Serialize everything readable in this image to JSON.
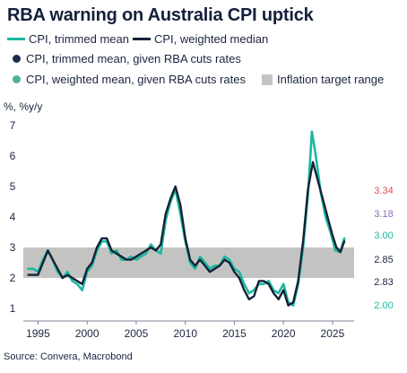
{
  "title": "RBA warning on Australia CPI uptick",
  "legend": [
    {
      "label": "CPI, trimmed mean",
      "kind": "line",
      "color": "#1ab89f"
    },
    {
      "label": "CPI, weighted median",
      "kind": "line",
      "color": "#142238"
    },
    {
      "label": "CPI, trimmed mean, given RBA cuts rates",
      "kind": "dot",
      "color": "#1c2d4e"
    },
    {
      "label": "CPI, weighted mean, given RBA cuts rates",
      "kind": "dot",
      "color": "#4fb39c"
    },
    {
      "label": "Inflation target range",
      "kind": "box",
      "color": "#c3c4c2"
    }
  ],
  "y_unit": "%, %y/y",
  "source": "Source: Convera, Macrobond",
  "colors": {
    "trimmed": "#1ab89f",
    "median": "#142238",
    "band": "#c3c4c2",
    "label_334": "#d9534f",
    "label_318": "#8c6ab5",
    "label_300": "#1ab89f",
    "label_285": "#1a2440",
    "label_283": "#1a2440",
    "label_200": "#1ab89f"
  },
  "chart_data": {
    "type": "line",
    "xlim": [
      1993.5,
      2027.2
    ],
    "ylim": [
      1,
      7
    ],
    "x_ticks": [
      1995,
      2000,
      2005,
      2010,
      2015,
      2020,
      2025
    ],
    "y_ticks": [
      1,
      2,
      3,
      4,
      5,
      6,
      7
    ],
    "band": {
      "name": "Inflation target range",
      "y0": 2,
      "y1": 3
    },
    "series": [
      {
        "name": "CPI, trimmed mean",
        "color": "#1ab89f",
        "points": [
          [
            1994.0,
            2.3
          ],
          [
            1994.5,
            2.3
          ],
          [
            1995.0,
            2.2
          ],
          [
            1995.5,
            2.6
          ],
          [
            1996.0,
            2.9
          ],
          [
            1996.5,
            2.6
          ],
          [
            1997.0,
            2.2
          ],
          [
            1997.5,
            2.0
          ],
          [
            1998.0,
            2.2
          ],
          [
            1998.5,
            1.9
          ],
          [
            1999.0,
            1.8
          ],
          [
            1999.5,
            1.6
          ],
          [
            2000.0,
            2.2
          ],
          [
            2000.5,
            2.4
          ],
          [
            2001.0,
            2.9
          ],
          [
            2001.5,
            3.2
          ],
          [
            2002.0,
            3.2
          ],
          [
            2002.5,
            2.8
          ],
          [
            2003.0,
            2.9
          ],
          [
            2003.5,
            2.6
          ],
          [
            2004.0,
            2.6
          ],
          [
            2004.5,
            2.7
          ],
          [
            2005.0,
            2.6
          ],
          [
            2005.5,
            2.7
          ],
          [
            2006.0,
            2.8
          ],
          [
            2006.5,
            3.1
          ],
          [
            2007.0,
            2.9
          ],
          [
            2007.5,
            2.8
          ],
          [
            2008.0,
            3.9
          ],
          [
            2008.5,
            4.5
          ],
          [
            2009.0,
            4.9
          ],
          [
            2009.5,
            4.1
          ],
          [
            2010.0,
            3.2
          ],
          [
            2010.5,
            2.5
          ],
          [
            2011.0,
            2.3
          ],
          [
            2011.5,
            2.7
          ],
          [
            2012.0,
            2.5
          ],
          [
            2012.5,
            2.3
          ],
          [
            2013.0,
            2.4
          ],
          [
            2013.5,
            2.4
          ],
          [
            2014.0,
            2.7
          ],
          [
            2014.5,
            2.6
          ],
          [
            2015.0,
            2.3
          ],
          [
            2015.5,
            2.2
          ],
          [
            2016.0,
            1.8
          ],
          [
            2016.5,
            1.5
          ],
          [
            2017.0,
            1.6
          ],
          [
            2017.5,
            1.8
          ],
          [
            2018.0,
            1.8
          ],
          [
            2018.5,
            1.9
          ],
          [
            2019.0,
            1.6
          ],
          [
            2019.5,
            1.5
          ],
          [
            2020.0,
            1.8
          ],
          [
            2020.5,
            1.2
          ],
          [
            2021.0,
            1.1
          ],
          [
            2021.5,
            1.8
          ],
          [
            2022.0,
            3.0
          ],
          [
            2022.5,
            4.7
          ],
          [
            2022.9,
            6.8
          ],
          [
            2023.3,
            6.0
          ],
          [
            2023.8,
            4.8
          ],
          [
            2024.3,
            4.0
          ],
          [
            2024.8,
            3.5
          ],
          [
            2025.3,
            2.9
          ],
          [
            2025.8,
            2.85
          ],
          [
            2026.2,
            3.3
          ]
        ]
      },
      {
        "name": "CPI, weighted median",
        "color": "#142238",
        "points": [
          [
            1994.0,
            2.1
          ],
          [
            1994.5,
            2.1
          ],
          [
            1995.0,
            2.1
          ],
          [
            1995.5,
            2.5
          ],
          [
            1996.0,
            2.9
          ],
          [
            1996.5,
            2.6
          ],
          [
            1997.0,
            2.3
          ],
          [
            1997.5,
            2.0
          ],
          [
            1998.0,
            2.1
          ],
          [
            1998.5,
            2.0
          ],
          [
            1999.0,
            1.9
          ],
          [
            1999.5,
            1.8
          ],
          [
            2000.0,
            2.3
          ],
          [
            2000.5,
            2.5
          ],
          [
            2001.0,
            3.0
          ],
          [
            2001.5,
            3.3
          ],
          [
            2002.0,
            3.3
          ],
          [
            2002.5,
            2.9
          ],
          [
            2003.0,
            2.8
          ],
          [
            2003.5,
            2.7
          ],
          [
            2004.0,
            2.6
          ],
          [
            2004.5,
            2.6
          ],
          [
            2005.0,
            2.7
          ],
          [
            2005.5,
            2.8
          ],
          [
            2006.0,
            2.9
          ],
          [
            2006.5,
            3.0
          ],
          [
            2007.0,
            2.9
          ],
          [
            2007.5,
            3.1
          ],
          [
            2008.0,
            4.1
          ],
          [
            2008.5,
            4.6
          ],
          [
            2009.0,
            5.0
          ],
          [
            2009.5,
            4.4
          ],
          [
            2010.0,
            3.3
          ],
          [
            2010.5,
            2.6
          ],
          [
            2011.0,
            2.4
          ],
          [
            2011.5,
            2.6
          ],
          [
            2012.0,
            2.4
          ],
          [
            2012.5,
            2.2
          ],
          [
            2013.0,
            2.3
          ],
          [
            2013.5,
            2.4
          ],
          [
            2014.0,
            2.6
          ],
          [
            2014.5,
            2.5
          ],
          [
            2015.0,
            2.2
          ],
          [
            2015.5,
            2.0
          ],
          [
            2016.0,
            1.6
          ],
          [
            2016.5,
            1.3
          ],
          [
            2017.0,
            1.4
          ],
          [
            2017.5,
            1.9
          ],
          [
            2018.0,
            1.9
          ],
          [
            2018.5,
            1.8
          ],
          [
            2019.0,
            1.5
          ],
          [
            2019.5,
            1.3
          ],
          [
            2020.0,
            1.6
          ],
          [
            2020.5,
            1.1
          ],
          [
            2021.0,
            1.2
          ],
          [
            2021.5,
            1.9
          ],
          [
            2022.0,
            3.2
          ],
          [
            2022.5,
            4.9
          ],
          [
            2023.0,
            5.8
          ],
          [
            2023.5,
            5.2
          ],
          [
            2024.0,
            4.6
          ],
          [
            2024.5,
            4.0
          ],
          [
            2025.0,
            3.4
          ],
          [
            2025.4,
            3.0
          ],
          [
            2025.8,
            2.85
          ],
          [
            2026.2,
            3.2
          ]
        ]
      }
    ],
    "end_labels": [
      {
        "text": "3.34",
        "y": 3.34,
        "color_key": "label_334"
      },
      {
        "text": "3.18",
        "y": 3.18,
        "color_key": "label_318"
      },
      {
        "text": "3.00",
        "y": 3.0,
        "color_key": "label_300"
      },
      {
        "text": "2.85",
        "y": 2.85,
        "color_key": "label_285"
      },
      {
        "text": "2.83",
        "y": 2.83,
        "color_key": "label_283"
      },
      {
        "text": "2.00",
        "y": 2.0,
        "color_key": "label_200"
      }
    ]
  }
}
